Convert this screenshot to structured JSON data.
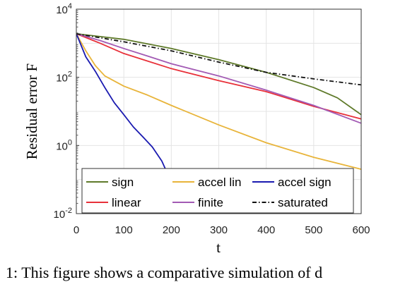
{
  "chart_data": {
    "type": "line",
    "title": "",
    "xlabel": "t",
    "ylabel": "Residual error F",
    "xlim": [
      0,
      600
    ],
    "ylim": [
      0.01,
      10000
    ],
    "yscale": "log",
    "grid": true,
    "legend_position": "bottom",
    "x_ticks": [
      "0",
      "100",
      "200",
      "300",
      "400",
      "500",
      "600"
    ],
    "y_ticks": [
      {
        "value": 10000,
        "base": "10",
        "exp": "4"
      },
      {
        "value": 100,
        "base": "10",
        "exp": "2"
      },
      {
        "value": 1,
        "base": "10",
        "exp": "0"
      },
      {
        "value": 0.01,
        "base": "10",
        "exp": "-2"
      }
    ],
    "series": [
      {
        "name": "sign",
        "color": "#5f7a2a",
        "dash": "solid",
        "x": [
          0,
          100,
          200,
          300,
          400,
          500,
          550,
          600
        ],
        "y": [
          1900,
          1300,
          700,
          330,
          140,
          50,
          25,
          8
        ]
      },
      {
        "name": "accel lin",
        "color": "#e8b43a",
        "dash": "solid",
        "x": [
          0,
          20,
          40,
          60,
          100,
          150,
          200,
          300,
          400,
          500,
          600
        ],
        "y": [
          1900,
          600,
          220,
          110,
          55,
          30,
          15,
          4,
          1.2,
          0.45,
          0.2
        ]
      },
      {
        "name": "accel sign",
        "color": "#1a1ab0",
        "dash": "solid",
        "x": [
          0,
          20,
          40,
          60,
          80,
          100,
          120,
          140,
          160,
          180,
          195,
          205,
          215,
          225
        ],
        "y": [
          1900,
          400,
          150,
          50,
          18,
          8,
          3.5,
          1.8,
          0.9,
          0.35,
          0.12,
          0.05,
          0.02,
          0.007
        ]
      },
      {
        "name": "linear",
        "color": "#e8313a",
        "dash": "solid",
        "x": [
          0,
          50,
          100,
          150,
          200,
          300,
          400,
          500,
          600
        ],
        "y": [
          1900,
          1000,
          500,
          300,
          180,
          80,
          38,
          14,
          6
        ]
      },
      {
        "name": "finite",
        "color": "#a25ab4",
        "dash": "solid",
        "x": [
          0,
          50,
          100,
          150,
          200,
          300,
          400,
          500,
          600
        ],
        "y": [
          1900,
          1200,
          700,
          420,
          250,
          110,
          42,
          15,
          4.5
        ]
      },
      {
        "name": "saturated",
        "color": "#111111",
        "dash": "dashdot",
        "x": [
          0,
          100,
          200,
          300,
          400,
          500,
          600
        ],
        "y": [
          1900,
          1100,
          600,
          280,
          140,
          90,
          60
        ]
      }
    ]
  },
  "caption": "1: This figure shows a comparative simulation of d"
}
